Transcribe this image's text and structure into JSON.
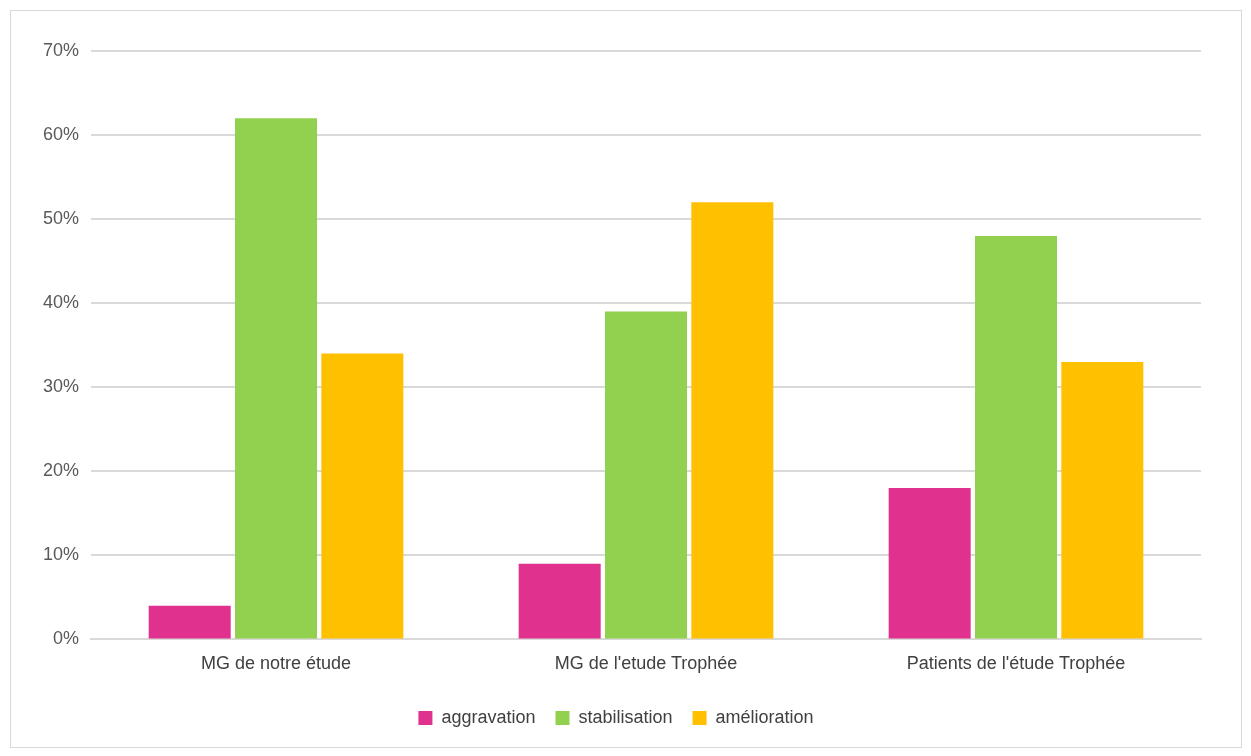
{
  "chart_data": {
    "type": "bar",
    "categories": [
      "MG de notre étude",
      "MG de l'etude Trophée",
      "Patients de l'étude Trophée"
    ],
    "series": [
      {
        "name": "aggravation",
        "color": "#e0318f",
        "values": [
          4,
          9,
          18
        ]
      },
      {
        "name": "stabilisation",
        "color": "#92d050",
        "values": [
          62,
          39,
          48
        ]
      },
      {
        "name": "amélioration",
        "color": "#ffc000",
        "values": [
          34,
          52,
          33
        ]
      }
    ],
    "ylim": [
      0,
      70
    ],
    "yticks": [
      {
        "value": 0,
        "label": "0%"
      },
      {
        "value": 10,
        "label": "10%"
      },
      {
        "value": 20,
        "label": "20%"
      },
      {
        "value": 30,
        "label": "30%"
      },
      {
        "value": 40,
        "label": "40%"
      },
      {
        "value": 50,
        "label": "50%"
      },
      {
        "value": 60,
        "label": "60%"
      },
      {
        "value": 70,
        "label": "70%"
      }
    ],
    "grid": "y",
    "legend": "bottom"
  }
}
